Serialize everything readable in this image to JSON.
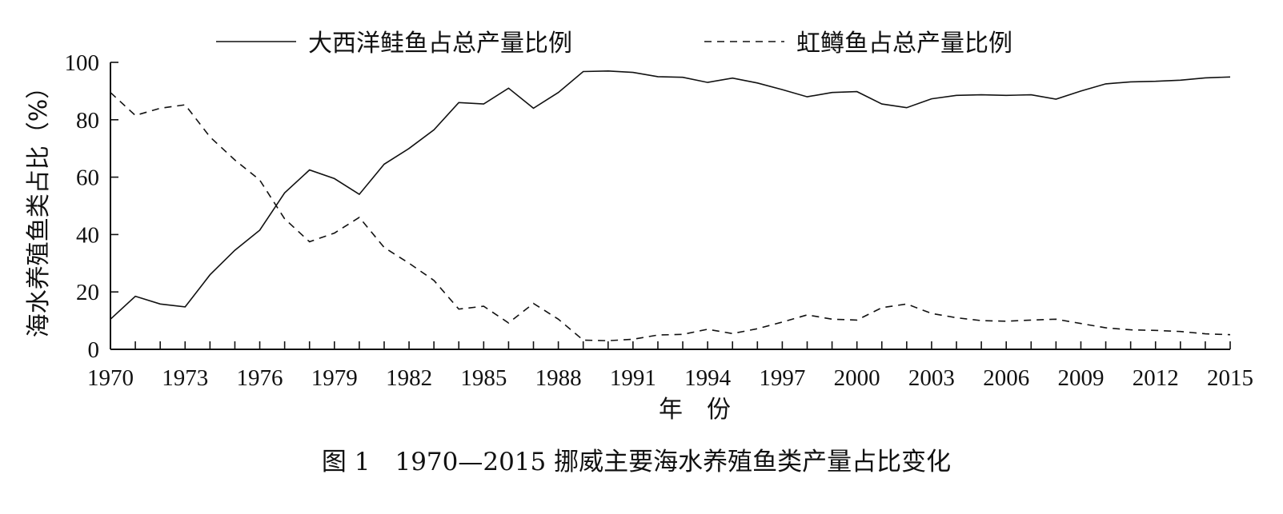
{
  "chart_data": {
    "type": "line",
    "x": [
      1970,
      1971,
      1972,
      1973,
      1974,
      1975,
      1976,
      1977,
      1978,
      1979,
      1980,
      1981,
      1982,
      1983,
      1984,
      1985,
      1986,
      1987,
      1988,
      1989,
      1990,
      1991,
      1992,
      1993,
      1994,
      1995,
      1996,
      1997,
      1998,
      1999,
      2000,
      2001,
      2002,
      2003,
      2004,
      2005,
      2006,
      2007,
      2008,
      2009,
      2010,
      2011,
      2012,
      2013,
      2014,
      2015
    ],
    "series": [
      {
        "name": "大西洋鲑鱼占总产量比例",
        "style": "solid",
        "values": [
          10.5,
          18.5,
          15.8,
          14.8,
          26,
          34.5,
          41.5,
          54.5,
          62.5,
          59.5,
          54,
          64.5,
          70,
          76.5,
          86,
          85.5,
          91,
          84,
          89.5,
          96.8,
          97,
          96.5,
          95,
          94.8,
          93,
          94.5,
          92.8,
          90.5,
          88,
          89.5,
          89.8,
          85.5,
          84.2,
          87.3,
          88.5,
          88.7,
          88.5,
          88.7,
          87.2,
          90,
          92.5,
          93.2,
          93.4,
          93.8,
          94.6,
          94.9
        ]
      },
      {
        "name": "虹鳟鱼占总产量比例",
        "style": "dashed",
        "values": [
          89.5,
          81.5,
          84,
          85.2,
          74,
          66,
          59,
          45.5,
          37.5,
          40.5,
          46,
          35.5,
          30,
          24,
          14,
          15,
          9.2,
          16,
          10.5,
          3.2,
          3,
          3.5,
          5,
          5.2,
          7,
          5.5,
          7.2,
          9.5,
          12,
          10.5,
          10.2,
          14.5,
          15.8,
          12.5,
          11,
          10,
          9.8,
          10.2,
          10.5,
          9,
          7.5,
          6.8,
          6.6,
          6.2,
          5.4,
          5.1
        ]
      }
    ],
    "xticks": [
      "1970",
      "1973",
      "1976",
      "1979",
      "1982",
      "1985",
      "1988",
      "1991",
      "1994",
      "1997",
      "2000",
      "2003",
      "2006",
      "2009",
      "2012",
      "2015"
    ],
    "yticks": [
      "0",
      "20",
      "40",
      "60",
      "80",
      "100"
    ],
    "xlim": [
      1970,
      2015
    ],
    "ylim": [
      0,
      100
    ],
    "xlabel": "年　份",
    "ylabel": "海水养殖鱼类占比（%）",
    "caption": "图 1　1970—2015 挪威主要海水养殖鱼类产量占比变化",
    "legend_position": "top",
    "grid": false
  }
}
